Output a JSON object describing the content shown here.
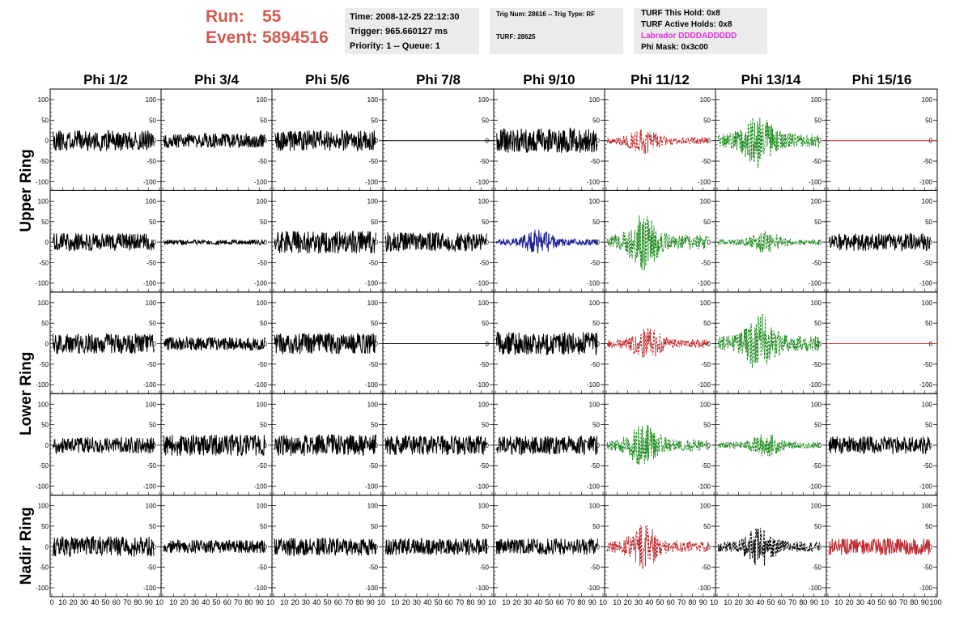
{
  "header": {
    "run_label": "Run:",
    "run_value": "55",
    "event_label": "Event:",
    "event_value": "5894516"
  },
  "time_panel": {
    "time": "Time: 2008-12-25 22:12:30",
    "trigger": "Trigger: 965.660127 ms",
    "priority": "Priority: 1 -- Queue: 1"
  },
  "trig_panel": {
    "trig_line": "Trig Num: 28616 -- Trig Type: RF",
    "turf_line": "TURF: 28625"
  },
  "turf_panel": {
    "this_hold": "TURF This Hold: 0x8",
    "active_holds": "TURF Active Holds: 0x8",
    "labrador": "Labrador DDDDADDDDD",
    "phi_mask": "Phi Mask: 0x3c00"
  },
  "colors": {
    "header_red": "#d25a50",
    "labrador_magenta": "#e030e0",
    "panel_bg": "#ebebeb",
    "trace_black": "#000000",
    "trace_red": "#c0282d",
    "trace_green": "#1e8c1e",
    "trace_blue": "#1e1e96"
  },
  "chart_data": {
    "type": "line",
    "columns": [
      "Phi 1/2",
      "Phi 3/4",
      "Phi 5/6",
      "Phi 7/8",
      "Phi 9/10",
      "Phi 11/12",
      "Phi 13/14",
      "Phi 15/16"
    ],
    "rows": [
      "Upper Ring",
      "Upper Ring",
      "Lower Ring",
      "Lower Ring",
      "Nadir Ring"
    ],
    "row_labels": [
      "Upper Ring",
      "Lower Ring",
      "Nadir Ring"
    ],
    "xlim": [
      0,
      100
    ],
    "ylim": [
      -110,
      110
    ],
    "y_ticks": [
      -100,
      -50,
      0,
      50,
      100
    ],
    "x_ticks": [
      0,
      10,
      20,
      30,
      40,
      50,
      60,
      70,
      80,
      90,
      100
    ],
    "x_tick_labels_first": [
      "0",
      "10",
      "20",
      "30",
      "40",
      "50",
      "60",
      "70",
      "80",
      "90",
      "10"
    ],
    "x_tick_labels_mid": [
      "10",
      "20",
      "30",
      "40",
      "50",
      "60",
      "70",
      "80",
      "90",
      "10"
    ],
    "x_tick_labels_last": [
      "10",
      "20",
      "30",
      "40",
      "50",
      "60",
      "70",
      "80",
      "90",
      "100"
    ],
    "traces": [
      [
        {
          "color": "black",
          "style": "solid",
          "amp": 25,
          "envelope": "flat",
          "seed": 11
        },
        {
          "color": "black",
          "style": "solid",
          "amp": 18,
          "envelope": "flat",
          "seed": 12
        },
        {
          "color": "black",
          "style": "solid",
          "amp": 25,
          "envelope": "flat",
          "seed": 13
        },
        {
          "color": "black",
          "style": "solid",
          "amp": 0,
          "envelope": "flat",
          "seed": 14
        },
        {
          "color": "black",
          "style": "solid",
          "amp": 30,
          "envelope": "flat",
          "seed": 15
        },
        {
          "color": "red",
          "style": "dashed",
          "amp": 35,
          "envelope": "pulse",
          "center": 35,
          "seed": 16
        },
        {
          "color": "green",
          "style": "dashed",
          "amp": 70,
          "envelope": "pulse",
          "center": 38,
          "seed": 17
        },
        {
          "color": "red",
          "style": "solid",
          "amp": 0,
          "envelope": "flat",
          "seed": 18
        }
      ],
      [
        {
          "color": "black",
          "style": "solid",
          "amp": 22,
          "envelope": "flat",
          "seed": 21
        },
        {
          "color": "black",
          "style": "solid",
          "amp": 6,
          "envelope": "flat",
          "seed": 22
        },
        {
          "color": "black",
          "style": "solid",
          "amp": 28,
          "envelope": "flat",
          "seed": 23
        },
        {
          "color": "black",
          "style": "solid",
          "amp": 24,
          "envelope": "flat",
          "seed": 24
        },
        {
          "color": "blue",
          "style": "solid",
          "amp": 32,
          "envelope": "pulse",
          "center": 40,
          "seed": 25
        },
        {
          "color": "green",
          "style": "dashed",
          "amp": 70,
          "envelope": "pulse",
          "center": 35,
          "seed": 26
        },
        {
          "color": "green",
          "style": "dashed",
          "amp": 28,
          "envelope": "pulse",
          "center": 45,
          "seed": 27
        },
        {
          "color": "black",
          "style": "solid",
          "amp": 22,
          "envelope": "flat",
          "seed": 28
        }
      ],
      [
        {
          "color": "black",
          "style": "solid",
          "amp": 25,
          "envelope": "flat",
          "seed": 31
        },
        {
          "color": "black",
          "style": "solid",
          "amp": 16,
          "envelope": "flat",
          "seed": 32
        },
        {
          "color": "black",
          "style": "solid",
          "amp": 26,
          "envelope": "flat",
          "seed": 33
        },
        {
          "color": "black",
          "style": "solid",
          "amp": 0,
          "envelope": "flat",
          "seed": 34
        },
        {
          "color": "black",
          "style": "solid",
          "amp": 28,
          "envelope": "flat",
          "seed": 35
        },
        {
          "color": "red",
          "style": "dashed",
          "amp": 40,
          "envelope": "pulse",
          "center": 38,
          "seed": 36
        },
        {
          "color": "green",
          "style": "dashed",
          "amp": 75,
          "envelope": "pulse",
          "center": 40,
          "seed": 37
        },
        {
          "color": "red",
          "style": "solid",
          "amp": 0,
          "envelope": "flat",
          "seed": 38
        }
      ],
      [
        {
          "color": "black",
          "style": "solid",
          "amp": 20,
          "envelope": "flat",
          "seed": 41
        },
        {
          "color": "black",
          "style": "solid",
          "amp": 26,
          "envelope": "flat",
          "seed": 42
        },
        {
          "color": "black",
          "style": "solid",
          "amp": 26,
          "envelope": "flat",
          "seed": 43
        },
        {
          "color": "black",
          "style": "solid",
          "amp": 24,
          "envelope": "flat",
          "seed": 44
        },
        {
          "color": "black",
          "style": "solid",
          "amp": 24,
          "envelope": "flat",
          "seed": 45
        },
        {
          "color": "green",
          "style": "dashed",
          "amp": 55,
          "envelope": "pulse",
          "center": 35,
          "seed": 46
        },
        {
          "color": "green",
          "style": "dashed",
          "amp": 30,
          "envelope": "pulse",
          "center": 45,
          "seed": 47
        },
        {
          "color": "black",
          "style": "solid",
          "amp": 22,
          "envelope": "flat",
          "seed": 48
        }
      ],
      [
        {
          "color": "black",
          "style": "solid",
          "amp": 25,
          "envelope": "flat",
          "seed": 51
        },
        {
          "color": "black",
          "style": "solid",
          "amp": 16,
          "envelope": "flat",
          "seed": 52
        },
        {
          "color": "black",
          "style": "solid",
          "amp": 22,
          "envelope": "flat",
          "seed": 53
        },
        {
          "color": "black",
          "style": "solid",
          "amp": 20,
          "envelope": "flat",
          "seed": 54
        },
        {
          "color": "black",
          "style": "solid",
          "amp": 20,
          "envelope": "flat",
          "seed": 55
        },
        {
          "color": "red",
          "style": "dashed",
          "amp": 55,
          "envelope": "pulse",
          "center": 35,
          "seed": 56
        },
        {
          "color": "black",
          "style": "dashed",
          "amp": 50,
          "envelope": "pulse",
          "center": 40,
          "seed": 57
        },
        {
          "color": "red",
          "style": "solid",
          "amp": 20,
          "envelope": "flat",
          "seed": 58
        }
      ]
    ]
  }
}
